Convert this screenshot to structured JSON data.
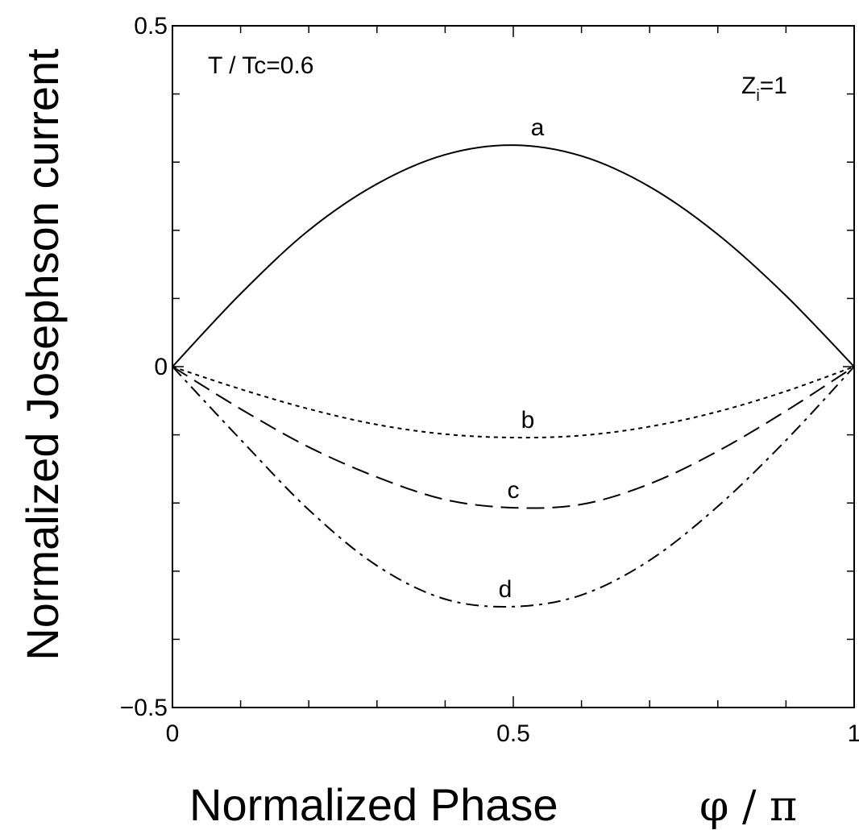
{
  "chart_data": {
    "type": "line",
    "xlabel": "Normalized Phase",
    "xlabel_symbol": "φ / π",
    "ylabel": "Normalized Josephson current",
    "xlim": [
      0,
      1
    ],
    "ylim": [
      -0.5,
      0.5
    ],
    "x_ticks_major": [
      0,
      0.5,
      1
    ],
    "x_tick_labels": [
      "0",
      "0.5",
      "1"
    ],
    "x_ticks_minor_step": 0.1,
    "y_ticks_major": [
      -0.5,
      0,
      0.5
    ],
    "y_tick_labels": [
      "−0.5",
      "0",
      "0.5"
    ],
    "y_ticks_minor_step": 0.1,
    "grid": false,
    "annotations": {
      "temperature": "T / Tc=0.6",
      "z_main": "Z",
      "z_sub": "i",
      "z_value": "=1"
    },
    "series": [
      {
        "name": "a",
        "style": "solid",
        "x": [
          0,
          0.1,
          0.2,
          0.3,
          0.4,
          0.5,
          0.6,
          0.7,
          0.8,
          0.9,
          1.0
        ],
        "y": [
          0,
          0.107,
          0.2,
          0.268,
          0.311,
          0.325,
          0.309,
          0.264,
          0.194,
          0.104,
          0
        ]
      },
      {
        "name": "b",
        "style": "dotted",
        "x": [
          0,
          0.1,
          0.2,
          0.3,
          0.4,
          0.5,
          0.6,
          0.7,
          0.8,
          0.9,
          1.0
        ],
        "y": [
          0,
          -0.033,
          -0.062,
          -0.085,
          -0.099,
          -0.104,
          -0.101,
          -0.088,
          -0.066,
          -0.036,
          0
        ]
      },
      {
        "name": "c",
        "style": "dashed",
        "x": [
          0,
          0.1,
          0.2,
          0.3,
          0.4,
          0.5,
          0.6,
          0.7,
          0.8,
          0.9,
          1.0
        ],
        "y": [
          0,
          -0.062,
          -0.118,
          -0.162,
          -0.195,
          -0.207,
          -0.202,
          -0.172,
          -0.124,
          -0.065,
          0
        ]
      },
      {
        "name": "d",
        "style": "dashdot",
        "x": [
          0,
          0.1,
          0.2,
          0.3,
          0.4,
          0.5,
          0.6,
          0.7,
          0.8,
          0.9,
          1.0
        ],
        "y": [
          0,
          -0.107,
          -0.21,
          -0.292,
          -0.341,
          -0.352,
          -0.335,
          -0.284,
          -0.205,
          -0.108,
          0
        ]
      }
    ]
  }
}
